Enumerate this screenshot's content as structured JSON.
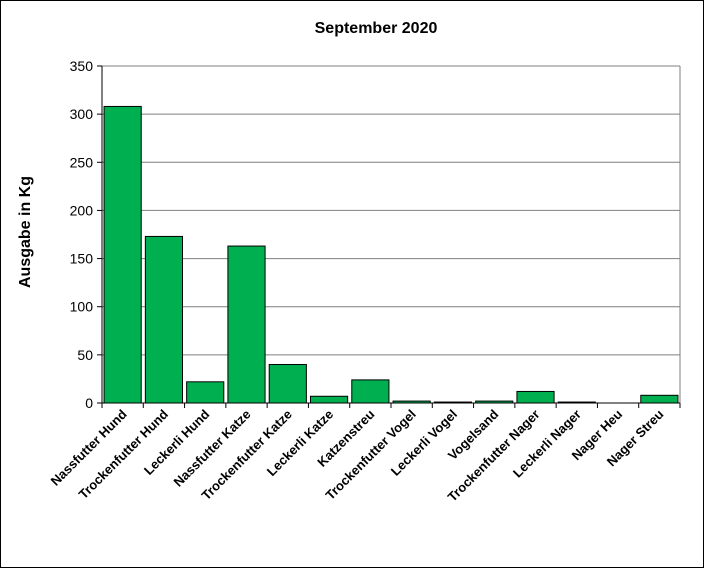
{
  "chart_data": {
    "type": "bar",
    "title": "September 2020",
    "xlabel": "",
    "ylabel": "Ausgabe in Kg",
    "ylim": [
      0,
      350
    ],
    "yticks": [
      0,
      50,
      100,
      150,
      200,
      250,
      300,
      350
    ],
    "grid": true,
    "legend": "none",
    "bar_color": "#00B050",
    "categories": [
      "Nassfutter Hund",
      "Trockenfutter Hund",
      "Leckerli Hund",
      "Nassfutter Katze",
      "Trockenfutter Katze",
      "Leckerli Katze",
      "Katzenstreu",
      "Trockenfutter Vogel",
      "Leckerli Vogel",
      "Vogelsand",
      "Trockenfutter Nager",
      "Leckerli Nager",
      "Nager Heu",
      "Nager Streu"
    ],
    "values": [
      308,
      173,
      22,
      163,
      40,
      7,
      24,
      2,
      1,
      2,
      12,
      1,
      0,
      8
    ]
  }
}
